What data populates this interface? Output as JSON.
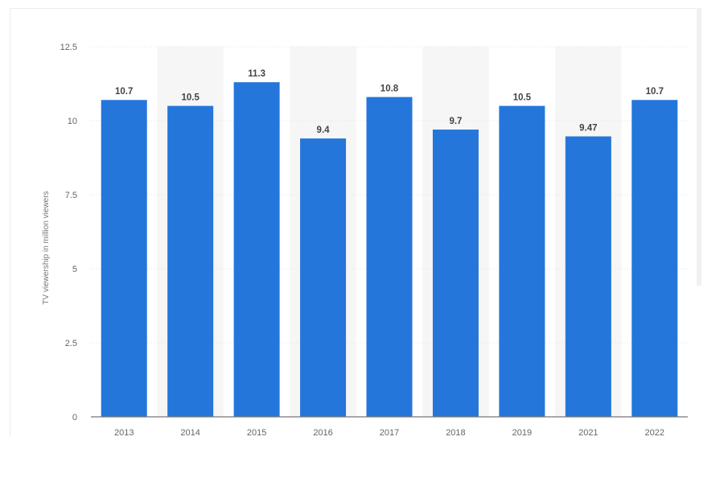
{
  "chart_data": {
    "type": "bar",
    "categories": [
      "2013",
      "2014",
      "2015",
      "2016",
      "2017",
      "2018",
      "2019",
      "2021",
      "2022"
    ],
    "values": [
      10.7,
      10.5,
      11.3,
      9.4,
      10.8,
      9.7,
      10.5,
      9.47,
      10.7
    ],
    "value_labels": [
      "10.7",
      "10.5",
      "11.3",
      "9.4",
      "10.8",
      "9.7",
      "10.5",
      "9.47",
      "10.7"
    ],
    "ylabel": "TV viewership in million viewers",
    "ylim": [
      0,
      12.5
    ],
    "yticks": [
      "0",
      "2.5",
      "5",
      "7.5",
      "10",
      "12.5"
    ],
    "ytick_values": [
      0,
      2.5,
      5,
      7.5,
      10,
      12.5
    ],
    "grid": true,
    "bar_color": "#2576db",
    "band_color": "#f6f6f6"
  }
}
